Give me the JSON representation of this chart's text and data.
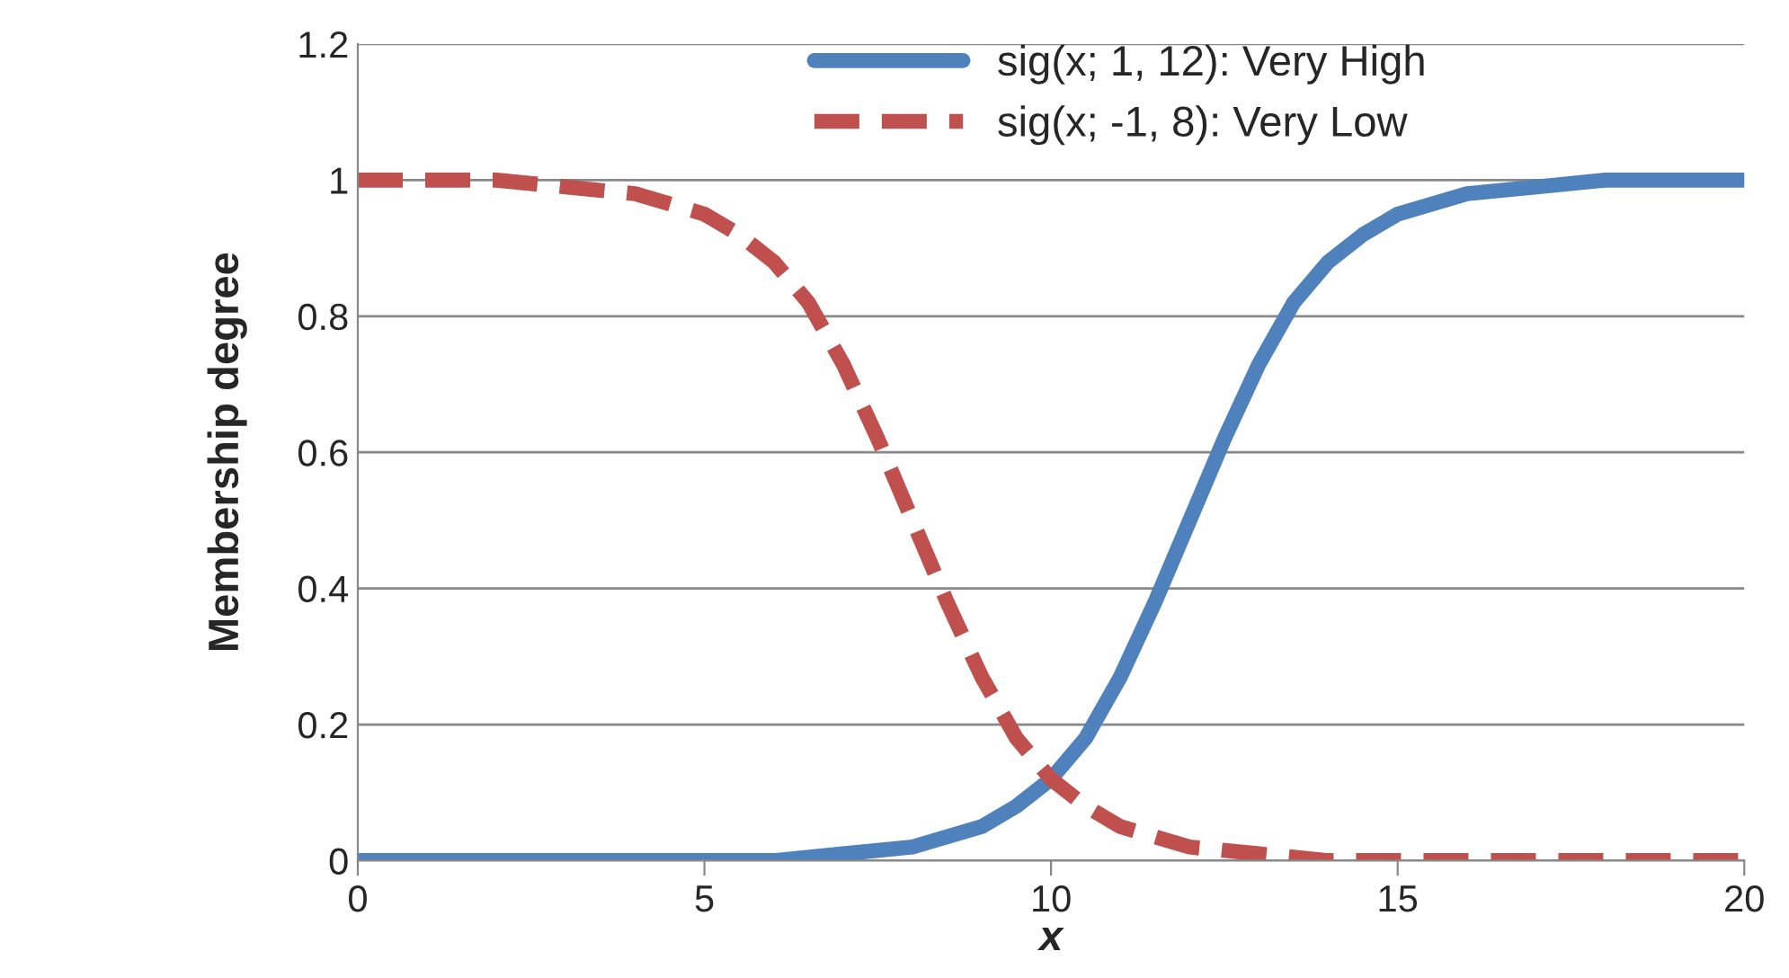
{
  "chart_data": {
    "type": "line",
    "xlabel": "x",
    "ylabel": "Membership degree",
    "xlim": [
      0,
      20
    ],
    "ylim": [
      0,
      1.2
    ],
    "xticks": [
      0,
      5,
      10,
      15,
      20
    ],
    "yticks": [
      0,
      0.2,
      0.4,
      0.6,
      0.8,
      1,
      1.2
    ],
    "grid": "y",
    "legend": "top",
    "series": [
      {
        "name": "sig(x; 1, 12): Very High",
        "color": "#4f81bd",
        "line_style": "solid",
        "x": [
          0,
          1,
          2,
          3,
          4,
          5,
          6,
          7,
          8,
          9,
          9.5,
          10,
          10.5,
          11,
          11.5,
          12,
          12.5,
          13,
          13.5,
          14,
          14.5,
          15,
          16,
          17,
          18,
          19,
          20
        ],
        "values": [
          0,
          0,
          0,
          0,
          0,
          0,
          0,
          0.01,
          0.02,
          0.05,
          0.08,
          0.12,
          0.18,
          0.27,
          0.38,
          0.5,
          0.62,
          0.73,
          0.82,
          0.88,
          0.92,
          0.95,
          0.98,
          0.99,
          1,
          1,
          1
        ]
      },
      {
        "name": "sig(x; -1, 8): Very Low",
        "color": "#c0504d",
        "line_style": "dashed",
        "x": [
          0,
          1,
          2,
          3,
          4,
          5,
          5.5,
          6,
          6.5,
          7,
          7.5,
          8,
          8.5,
          9,
          9.5,
          10,
          10.5,
          11,
          12,
          13,
          14,
          15,
          16,
          17,
          18,
          19,
          20
        ],
        "values": [
          1,
          1,
          1,
          0.99,
          0.98,
          0.95,
          0.92,
          0.88,
          0.82,
          0.73,
          0.62,
          0.5,
          0.38,
          0.27,
          0.18,
          0.12,
          0.08,
          0.05,
          0.02,
          0.01,
          0,
          0,
          0,
          0,
          0,
          0,
          0
        ]
      }
    ]
  }
}
